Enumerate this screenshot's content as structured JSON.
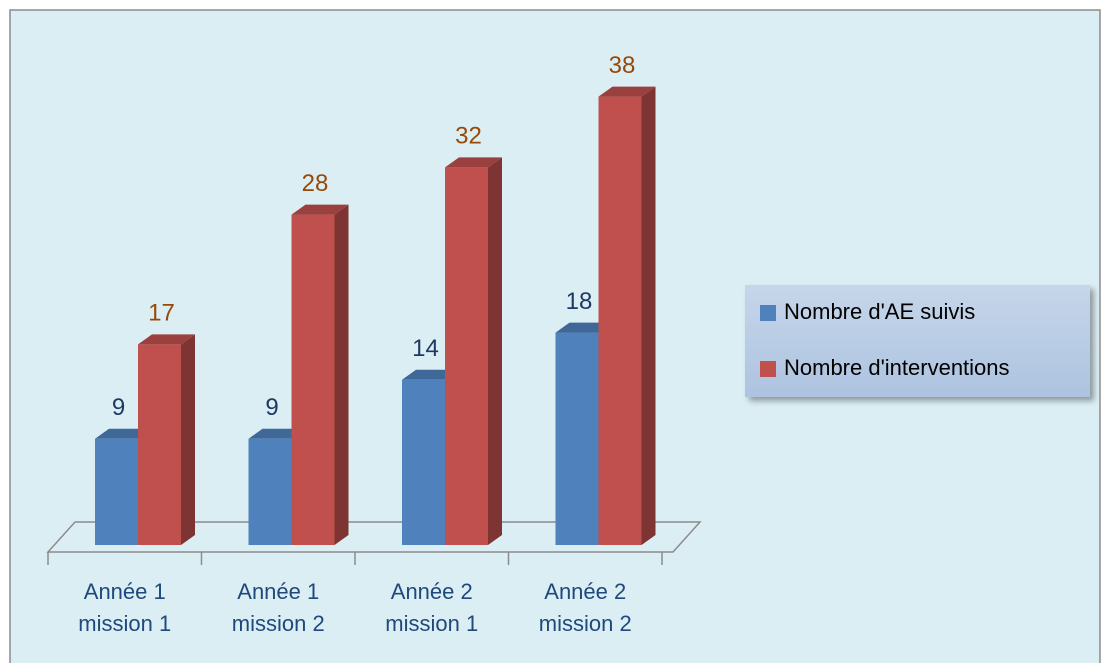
{
  "chart_data": {
    "type": "bar",
    "categories": [
      "Année 1 mission 1",
      "Année 1 mission 2",
      "Année 2 mission 1",
      "Année 2 mission 2"
    ],
    "series": [
      {
        "name": "Nombre d'AE suivis",
        "color": "#4f81bd",
        "label_color": "#1f3864",
        "values": [
          9,
          9,
          14,
          18
        ]
      },
      {
        "name": "Nombre d'interventions",
        "color": "#c0504d",
        "label_color": "#984807",
        "values": [
          17,
          28,
          32,
          38
        ]
      }
    ],
    "legend": "right"
  }
}
